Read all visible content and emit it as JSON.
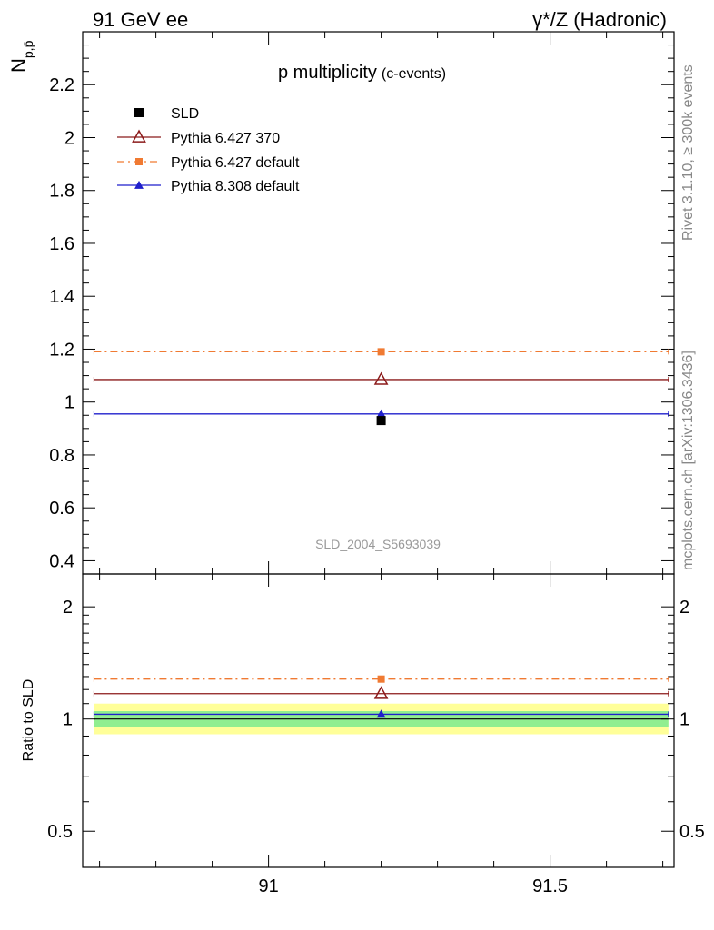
{
  "header": {
    "left": "91 GeV ee",
    "right": "γ*/Z (Hadronic)"
  },
  "side_labels": {
    "rivet": "Rivet 3.1.10, ≥ 300k events",
    "mcplots": "mcplots.cern.ch [arXiv:1306.3436]"
  },
  "analysis_id": "SLD_2004_S5693039",
  "colors": {
    "sld": "#000000",
    "pythia6_370": "#8b1a1a",
    "pythia6_default": "#f07a32",
    "pythia8_default": "#1f1fcc",
    "band_inner": "#90ee90",
    "band_outer": "#ffff99"
  },
  "chart_data": [
    {
      "type": "scatter",
      "title": "p multiplicity",
      "title_suffix": "(c-events)",
      "ylabel_main": "N",
      "ylabel_sub": "p,p̄",
      "xlim": [
        90.67,
        91.72
      ],
      "ylim": [
        0.35,
        2.4
      ],
      "yticks": [
        0.4,
        0.6,
        0.8,
        1,
        1.2,
        1.4,
        1.6,
        1.8,
        2,
        2.2
      ],
      "ytick_labels": [
        "0.4",
        "0.6",
        "0.8",
        "1",
        "1.2",
        "1.4",
        "1.6",
        "1.8",
        "2",
        "2.2"
      ],
      "x_bin": [
        90.69,
        91.71
      ],
      "x_center": 91.2,
      "series": [
        {
          "name": "SLD",
          "y": 0.93,
          "marker": "square-filled"
        },
        {
          "name": "Pythia 6.427 370",
          "y": 1.085,
          "marker": "triangle-open"
        },
        {
          "name": "Pythia 6.427 default",
          "y": 1.19,
          "marker": "square-filled"
        },
        {
          "name": "Pythia 8.308 default",
          "y": 0.955,
          "marker": "triangle-filled"
        }
      ]
    },
    {
      "type": "scatter",
      "ylabel": "Ratio to SLD",
      "yscale": "log",
      "xlim": [
        90.67,
        91.72
      ],
      "ylim": [
        0.4,
        2.45
      ],
      "yticks": [
        0.5,
        1,
        2
      ],
      "ytick_labels": [
        "0.5",
        "1",
        "2"
      ],
      "xticks": [
        91,
        91.5
      ],
      "xtick_labels": [
        "91",
        "91.5"
      ],
      "band_inner": [
        0.95,
        1.05
      ],
      "band_outer": [
        0.91,
        1.1
      ],
      "series": [
        {
          "name": "Pythia 6.427 370",
          "y": 1.17
        },
        {
          "name": "Pythia 6.427 default",
          "y": 1.28
        },
        {
          "name": "Pythia 8.308 default",
          "y": 1.03
        }
      ]
    }
  ]
}
